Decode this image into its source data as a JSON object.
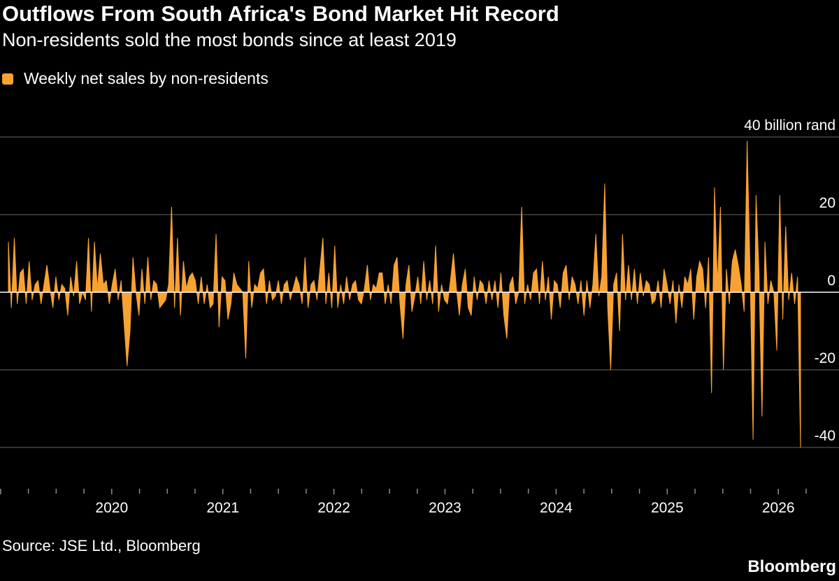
{
  "header": {
    "title": "Outflows From South Africa's Bond Market Hit Record",
    "subtitle": "Non-residents sold the most bonds since at least 2019"
  },
  "legend": {
    "label": "Weekly net sales by non-residents",
    "color": "#f7a233"
  },
  "footer": {
    "source": "Source: JSE Ltd., Bloomberg",
    "brand": "Bloomberg"
  },
  "colors": {
    "background": "#000000",
    "series": "#f7a233",
    "grid": "#666666",
    "zero_line": "#ffffff",
    "text": "#ffffff"
  },
  "chart_data": {
    "type": "area",
    "title": "Outflows From South Africa's Bond Market Hit Record",
    "subtitle": "Non-residents sold the most bonds since at least 2019",
    "xlabel": "",
    "ylabel": "40 billion rand",
    "unit": "billion rand",
    "x_start_year": 2019.07,
    "x_end_year": 2026.2,
    "xlim": [
      2019,
      2026.3
    ],
    "ylim": [
      -48,
      40
    ],
    "y_ticks": [
      40,
      20,
      0,
      -20,
      -40
    ],
    "y_tick_labels": [
      "40 billion rand",
      "20",
      "0",
      "-20",
      "-40"
    ],
    "x_ticks": [
      2020,
      2021,
      2022,
      2023,
      2024,
      2025,
      2026
    ],
    "x_tick_labels": [
      "2020",
      "2021",
      "2022",
      "2023",
      "2024",
      "2025",
      "2026"
    ],
    "grid": true,
    "legend_position": "top-left",
    "series": [
      {
        "name": "Weekly net sales by non-residents",
        "values": [
          13,
          -4,
          14,
          -3,
          5,
          6,
          -3,
          8,
          -2,
          2,
          3,
          -3,
          2,
          7,
          1,
          -4,
          4,
          -2,
          2,
          1,
          -6,
          4,
          -1,
          8,
          -3,
          0,
          -2,
          14,
          -5,
          13,
          1,
          10,
          2,
          3,
          -3,
          2,
          6,
          -2,
          3,
          -8,
          -19,
          -10,
          9,
          0,
          -6,
          6,
          -3,
          9,
          -2,
          3,
          2,
          -4,
          -3,
          -2,
          2,
          22,
          -4,
          14,
          -6,
          8,
          1,
          4,
          5,
          3,
          -3,
          4,
          -3,
          2,
          -4,
          -3,
          15,
          -9,
          4,
          3,
          -7,
          -3,
          5,
          2,
          1,
          0,
          -17,
          8,
          -4,
          2,
          1,
          5,
          6,
          -3,
          3,
          -2,
          -1,
          3,
          -3,
          2,
          3,
          -2,
          1,
          4,
          2,
          -3,
          9,
          -4,
          2,
          3,
          -2,
          6,
          14,
          -3,
          5,
          -4,
          12,
          -4,
          2,
          -3,
          4,
          -2,
          2,
          3,
          -2,
          -3,
          1,
          7,
          -2,
          2,
          1,
          5,
          5,
          -3,
          2,
          -3,
          7,
          9,
          -3,
          -12,
          2,
          7,
          -5,
          -1,
          4,
          -3,
          8,
          -2,
          3,
          -3,
          12,
          -5,
          2,
          -2,
          -3,
          3,
          10,
          1,
          -6,
          2,
          6,
          -4,
          -6,
          4,
          -2,
          3,
          2,
          -3,
          3,
          -2,
          3,
          -4,
          5,
          -6,
          -12,
          2,
          4,
          -3,
          0,
          22,
          -3,
          2,
          -2,
          5,
          6,
          -3,
          8,
          -2,
          4,
          -7,
          3,
          2,
          -4,
          5,
          7,
          -2,
          4,
          2,
          -3,
          3,
          -6,
          3,
          -4,
          2,
          15,
          -1,
          4,
          28,
          -4,
          -20,
          2,
          5,
          -10,
          15,
          -2,
          7,
          -2,
          6,
          -3,
          5,
          -1,
          3,
          2,
          -3,
          -2,
          3,
          -4,
          6,
          2,
          -3,
          3,
          -8,
          2,
          -4,
          4,
          2,
          6,
          -7,
          4,
          8,
          6,
          -4,
          9,
          -26,
          27,
          2,
          22,
          -20,
          6,
          -3,
          8,
          11,
          7,
          2,
          -5,
          39,
          5,
          -38,
          25,
          5,
          -32,
          13,
          -3,
          3,
          0,
          -15,
          25,
          -7,
          17,
          -2,
          5,
          -3,
          4,
          -40
        ]
      }
    ]
  }
}
